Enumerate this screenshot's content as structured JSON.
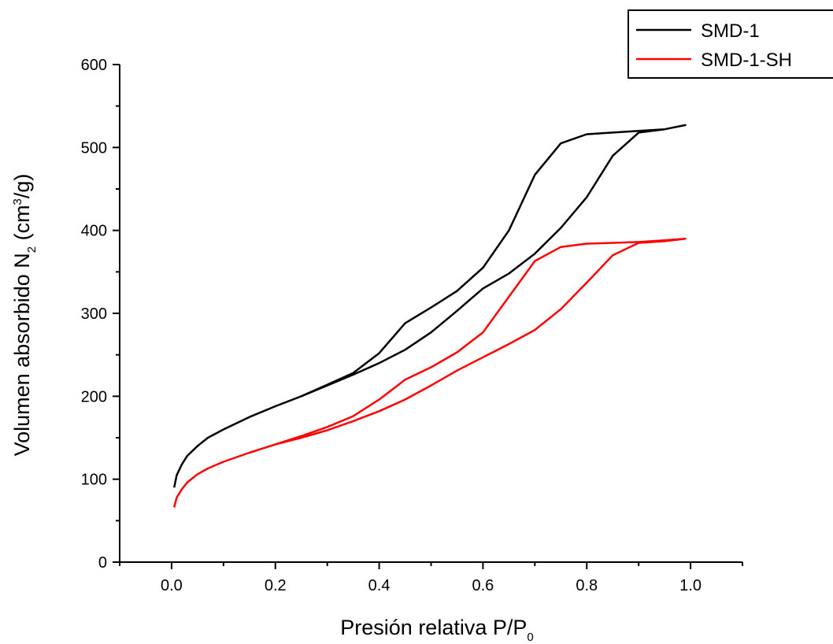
{
  "chart_data": {
    "type": "line",
    "xlabel": "Presión relativa P/P",
    "xlabel_sub": "0",
    "ylabel_pre": "Volumen absorbido N",
    "ylabel_sub": "2",
    "ylabel_mid": " (cm",
    "ylabel_sup": "3",
    "ylabel_post": "/g)",
    "xlim": [
      -0.1,
      1.1
    ],
    "ylim": [
      0,
      600
    ],
    "x_ticks": [
      0.0,
      0.2,
      0.4,
      0.6,
      0.8,
      1.0
    ],
    "x_tick_labels": [
      "0.0",
      "0.2",
      "0.4",
      "0.6",
      "0.8",
      "1.0"
    ],
    "y_ticks": [
      0,
      100,
      200,
      300,
      400,
      500,
      600
    ],
    "y_tick_labels": [
      "0",
      "100",
      "200",
      "300",
      "400",
      "500",
      "600"
    ],
    "grid": false,
    "legend_position": "top-right",
    "series": [
      {
        "name": "SMD-1",
        "color": "#000000",
        "x": [
          0.005,
          0.01,
          0.02,
          0.03,
          0.05,
          0.07,
          0.1,
          0.15,
          0.2,
          0.25,
          0.3,
          0.35,
          0.4,
          0.45,
          0.5,
          0.55,
          0.6,
          0.65,
          0.7,
          0.75,
          0.8,
          0.85,
          0.9,
          0.95,
          0.99,
          0.95,
          0.9,
          0.85,
          0.8,
          0.75,
          0.7,
          0.65,
          0.6,
          0.55,
          0.5,
          0.45,
          0.4,
          0.35,
          0.3,
          0.25,
          0.2,
          0.15,
          0.1
        ],
        "y": [
          90,
          105,
          118,
          128,
          140,
          150,
          160,
          175,
          188,
          200,
          213,
          226,
          240,
          256,
          277,
          303,
          330,
          348,
          372,
          403,
          440,
          490,
          518,
          522,
          527,
          522,
          520,
          518,
          516,
          505,
          467,
          400,
          355,
          327,
          307,
          288,
          252,
          228,
          214,
          200,
          188,
          175,
          160
        ]
      },
      {
        "name": "SMD-1-SH",
        "color": "#ff0000",
        "x": [
          0.005,
          0.01,
          0.02,
          0.03,
          0.05,
          0.07,
          0.1,
          0.15,
          0.2,
          0.25,
          0.3,
          0.35,
          0.4,
          0.45,
          0.5,
          0.55,
          0.6,
          0.65,
          0.7,
          0.75,
          0.8,
          0.85,
          0.9,
          0.95,
          0.99,
          0.95,
          0.9,
          0.85,
          0.8,
          0.75,
          0.7,
          0.65,
          0.6,
          0.55,
          0.5,
          0.45,
          0.4,
          0.35,
          0.3,
          0.25,
          0.2,
          0.15,
          0.1
        ],
        "y": [
          66,
          78,
          88,
          96,
          106,
          113,
          121,
          132,
          142,
          150,
          159,
          170,
          182,
          196,
          213,
          231,
          247,
          263,
          280,
          305,
          337,
          370,
          385,
          387,
          390,
          388,
          386,
          385,
          384,
          380,
          363,
          320,
          277,
          253,
          235,
          220,
          196,
          176,
          163,
          152,
          142,
          132,
          121
        ]
      }
    ]
  }
}
